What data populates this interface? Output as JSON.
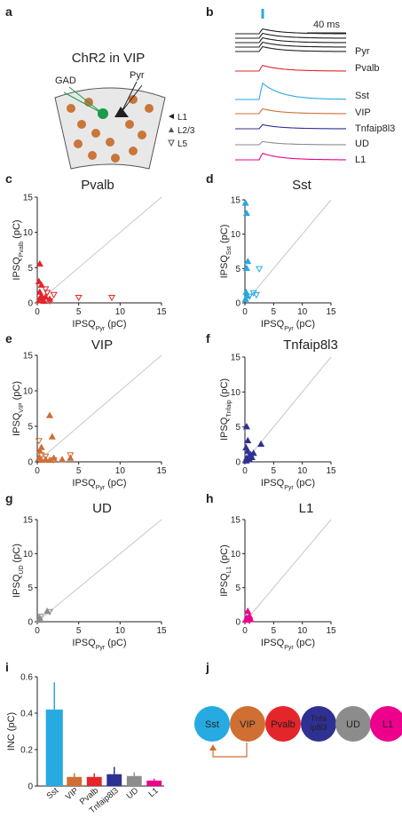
{
  "panel_labels": [
    "a",
    "b",
    "c",
    "d",
    "e",
    "f",
    "g",
    "h",
    "i",
    "j"
  ],
  "schematic": {
    "title": "ChR2 in VIP",
    "gad_label": "GAD",
    "pyr_label": "Pyr",
    "layers": [
      "L1",
      "L2/3",
      "L5"
    ]
  },
  "traces": {
    "scale_label": "40 ms",
    "labels": [
      {
        "text": "Pyr",
        "color": "#231f20"
      },
      {
        "text": "Pvalb",
        "color": "#e4252a"
      },
      {
        "text": "Sst",
        "color": "#27aae1"
      },
      {
        "text": "VIP",
        "color": "#cf6f33"
      },
      {
        "text": "Tnfaip8l3",
        "color": "#2e3192"
      },
      {
        "text": "UD",
        "color": "#8c8c8c"
      },
      {
        "text": "L1",
        "color": "#ec008c"
      }
    ]
  },
  "chart_data": [
    {
      "type": "scatter",
      "title": "Pvalb",
      "color": "#e4252a",
      "diagonal": true,
      "xlabel": {
        "text": "IPSQ",
        "sub": "Pyr",
        "unit": "(pC)"
      },
      "ylabel": {
        "text": "IPSQ",
        "sub": "Pvalb",
        "unit": "(pC)"
      },
      "xlim": [
        0,
        15
      ],
      "ylim": [
        0,
        15
      ],
      "xticks": [
        0,
        5,
        10,
        15
      ],
      "yticks": [
        0,
        5,
        10,
        15
      ],
      "series": [
        {
          "marker": "triangle-up",
          "filled": true,
          "x": [
            0.3,
            0.2,
            0.5,
            0.3,
            0.5,
            1,
            0.2,
            0.8,
            1.5,
            0.4
          ],
          "y": [
            5.5,
            3,
            2.5,
            1.5,
            1,
            0.8,
            0.3,
            0.2,
            0.5,
            0.6
          ]
        },
        {
          "marker": "triangle-down",
          "filled": false,
          "x": [
            1.2,
            2,
            5,
            9,
            1,
            1.5
          ],
          "y": [
            1.5,
            1.2,
            0.8,
            0.8,
            2,
            0.3
          ]
        }
      ]
    },
    {
      "type": "scatter",
      "title": "Sst",
      "color": "#27aae1",
      "diagonal": true,
      "xlabel": {
        "text": "IPSQ",
        "sub": "Pyr",
        "unit": "(pC)"
      },
      "ylabel": {
        "text": "IPSQ",
        "sub": "Sst",
        "unit": "(pC)"
      },
      "xlim": [
        0,
        15
      ],
      "ylim": [
        0,
        15
      ],
      "xticks": [
        0,
        5,
        10,
        15
      ],
      "yticks": [
        0,
        5,
        10,
        15
      ],
      "series": [
        {
          "marker": "triangle-up",
          "filled": true,
          "x": [
            0.1,
            0.3,
            0.5,
            0.3,
            0.2,
            0.4,
            0.1
          ],
          "y": [
            14.5,
            13,
            6,
            5,
            1.5,
            1,
            0.5
          ]
        },
        {
          "marker": "triangle-down",
          "filled": false,
          "x": [
            2.5,
            1.5,
            0.8,
            2
          ],
          "y": [
            5,
            1.5,
            1,
            1.2
          ]
        }
      ]
    },
    {
      "type": "scatter",
      "title": "VIP",
      "color": "#cf6f33",
      "diagonal": true,
      "xlabel": {
        "text": "IPSQ",
        "sub": "Pyr",
        "unit": "(pC)"
      },
      "ylabel": {
        "text": "IPSQ",
        "sub": "VIP",
        "unit": "(pC)"
      },
      "xlim": [
        0,
        15
      ],
      "ylim": [
        0,
        15
      ],
      "xticks": [
        0,
        5,
        10,
        15
      ],
      "yticks": [
        0,
        5,
        10,
        15
      ],
      "series": [
        {
          "marker": "triangle-up",
          "filled": true,
          "x": [
            1.5,
            1.8,
            0.5,
            0.3,
            0.2,
            1,
            2,
            3,
            4,
            0.5,
            1.5
          ],
          "y": [
            6.5,
            3.5,
            2,
            1.5,
            0.5,
            0.3,
            0.5,
            0.3,
            0.5,
            0.2,
            0.2
          ]
        },
        {
          "marker": "triangle-down",
          "filled": false,
          "x": [
            0.2,
            0.5,
            1,
            4,
            2
          ],
          "y": [
            3,
            1,
            0.8,
            1,
            0.3
          ]
        }
      ]
    },
    {
      "type": "scatter",
      "title": "Tnfaip8l3",
      "color": "#2e3192",
      "diagonal": true,
      "xlabel": {
        "text": "IPSQ",
        "sub": "Pyr",
        "unit": "(pC)"
      },
      "ylabel": {
        "text": "IPSQ",
        "sub": "Tnfaip",
        "unit": "(pC)"
      },
      "xlim": [
        0,
        15
      ],
      "ylim": [
        0,
        15
      ],
      "xticks": [
        0,
        5,
        10,
        15
      ],
      "yticks": [
        0,
        5,
        10,
        15
      ],
      "series": [
        {
          "marker": "triangle-up",
          "filled": true,
          "x": [
            0.3,
            0.5,
            0.2,
            0.5,
            1,
            2.8,
            1.5,
            0.3,
            0.8,
            1.2,
            0.2
          ],
          "y": [
            5,
            3,
            2,
            1.5,
            1,
            2.5,
            1.2,
            0.5,
            0.3,
            0.6,
            0.1
          ]
        },
        {
          "marker": "triangle-down",
          "filled": false,
          "x": [
            0.8,
            1
          ],
          "y": [
            0.5,
            0.8
          ]
        }
      ]
    },
    {
      "type": "scatter",
      "title": "UD",
      "color": "#8c8c8c",
      "diagonal": true,
      "xlabel": {
        "text": "IPSQ",
        "sub": "Pyr",
        "unit": "(pC)"
      },
      "ylabel": {
        "text": "IPSQ",
        "sub": "UD",
        "unit": "(pC)"
      },
      "xlim": [
        0,
        15
      ],
      "ylim": [
        0,
        15
      ],
      "xticks": [
        0,
        5,
        10,
        15
      ],
      "yticks": [
        0,
        5,
        10,
        15
      ],
      "series": [
        {
          "marker": "triangle-up",
          "filled": true,
          "x": [
            1.2,
            0.3,
            0.2
          ],
          "y": [
            1.5,
            0.5,
            0.2
          ]
        },
        {
          "marker": "triangle-down",
          "filled": false,
          "x": [
            1.5,
            0.4
          ],
          "y": [
            1.5,
            0.8
          ]
        }
      ]
    },
    {
      "type": "scatter",
      "title": "L1",
      "color": "#ec008c",
      "diagonal": true,
      "xlabel": {
        "text": "IPSQ",
        "sub": "Pyr",
        "unit": "(pC)"
      },
      "ylabel": {
        "text": "IPSQ",
        "sub": "L1",
        "unit": "(pC)"
      },
      "xlim": [
        0,
        15
      ],
      "ylim": [
        0,
        15
      ],
      "xticks": [
        0,
        5,
        10,
        15
      ],
      "yticks": [
        0,
        5,
        10,
        15
      ],
      "series": [
        {
          "marker": "triangle-up",
          "filled": true,
          "x": [
            0.5,
            0.3,
            0.8,
            1,
            0.2
          ],
          "y": [
            1.5,
            0.5,
            0.8,
            0.3,
            0.2
          ]
        },
        {
          "marker": "triangle-down",
          "filled": false,
          "x": [
            0.8
          ],
          "y": [
            0.2
          ]
        }
      ]
    },
    {
      "type": "bar",
      "ylabel": "INC (pC)",
      "categories": [
        "Sst",
        "VIP",
        "Pvalb",
        "Tnfaip8l3",
        "UD",
        "L1"
      ],
      "colors": [
        "#27aae1",
        "#cf6f33",
        "#e4252a",
        "#2e3192",
        "#8c8c8c",
        "#ec008c"
      ],
      "values": [
        0.42,
        0.05,
        0.05,
        0.065,
        0.055,
        0.03
      ],
      "errors": [
        0.15,
        0.02,
        0.02,
        0.04,
        0.02,
        0.01
      ],
      "ylim": [
        0,
        0.6
      ],
      "yticks": [
        0,
        0.2,
        0.4,
        0.6
      ]
    }
  ],
  "diagram": {
    "nodes": [
      {
        "lines": [
          "Sst"
        ],
        "color": "#27aae1"
      },
      {
        "lines": [
          "VIP"
        ],
        "color": "#cf6f33"
      },
      {
        "lines": [
          "Pvalb"
        ],
        "color": "#e4252a"
      },
      {
        "lines": [
          "Tnfa",
          "ip8l3"
        ],
        "color": "#2e3192"
      },
      {
        "lines": [
          "UD"
        ],
        "color": "#8c8c8c"
      },
      {
        "lines": [
          "L1"
        ],
        "color": "#ec008c"
      }
    ]
  }
}
